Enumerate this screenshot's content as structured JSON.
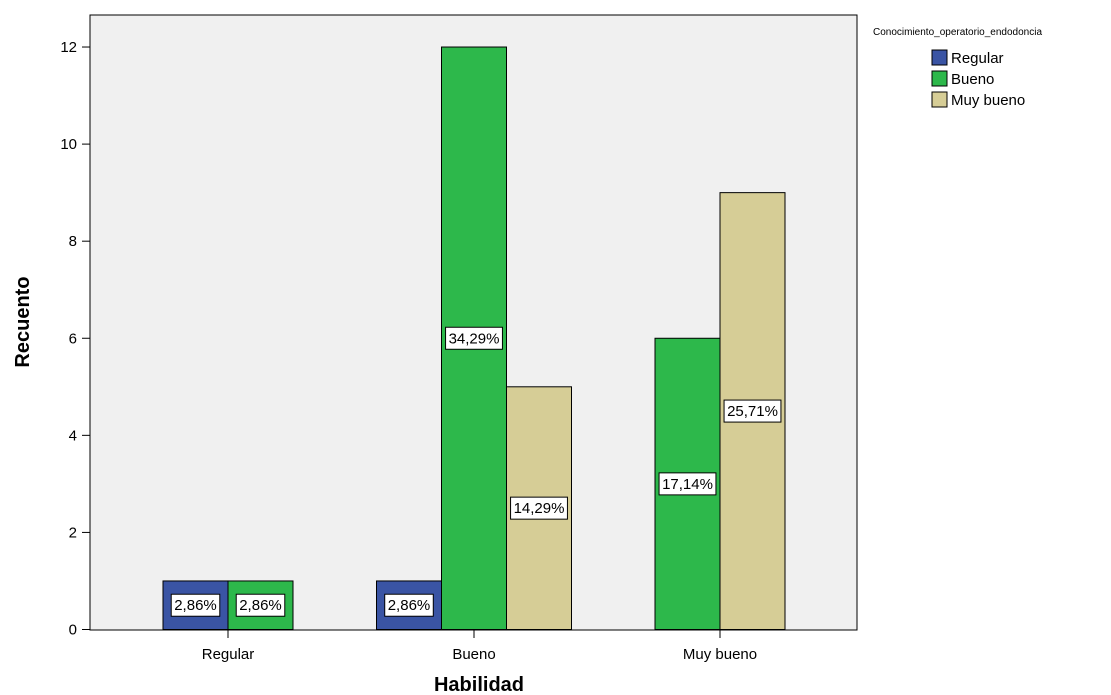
{
  "chart_data": {
    "type": "bar",
    "title": "",
    "xlabel": "Habilidad",
    "ylabel": "Recuento",
    "categories": [
      "Regular",
      "Bueno",
      "Muy bueno"
    ],
    "ylim": [
      0,
      13
    ],
    "yticks": [
      0,
      2,
      4,
      6,
      8,
      10,
      12
    ],
    "grid": false,
    "legend": {
      "title": "Conocimiento_operatorio_endodoncia",
      "placement": "top-right"
    },
    "series": [
      {
        "name": "Regular",
        "color": "#3a54a4",
        "values": [
          1,
          1,
          null
        ],
        "labels": [
          "2,86%",
          "2,86%",
          null
        ]
      },
      {
        "name": "Bueno",
        "color": "#2db84b",
        "values": [
          1,
          12,
          6
        ],
        "labels": [
          "2,86%",
          "34,29%",
          "17,14%"
        ]
      },
      {
        "name": "Muy bueno",
        "color": "#d6cd96",
        "values": [
          null,
          5,
          9
        ],
        "labels": [
          null,
          "14,29%",
          "25,71%"
        ]
      }
    ]
  },
  "colors": {
    "plot_background": "#f0f0f0",
    "label_box": "#ffffff"
  }
}
